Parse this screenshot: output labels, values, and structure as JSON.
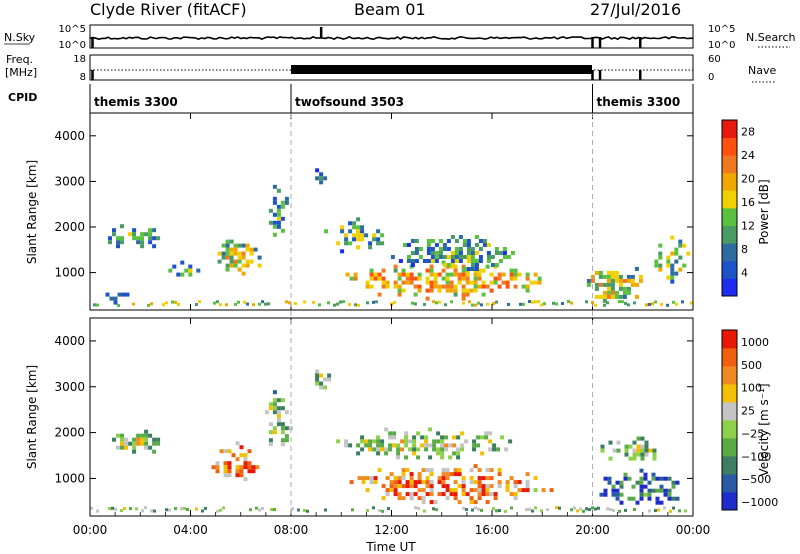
{
  "header": {
    "station": "Clyde River (fitACF)",
    "beam": "Beam 01",
    "date": "27/Jul/2016"
  },
  "panels": {
    "noise": {
      "left_label": "N.Sky",
      "left_ticks": [
        "10^5",
        "10^0"
      ],
      "right_label": "N.Search",
      "right_ticks": [
        "10^5",
        "10^0"
      ]
    },
    "freq": {
      "left_label_1": "Freq.",
      "left_label_2": "[MHz]",
      "left_ticks": [
        "18",
        "8"
      ],
      "right_label": "Nave",
      "right_ticks": [
        "60",
        "0"
      ]
    },
    "cpid": {
      "label": "CPID",
      "segments": [
        {
          "name": "themis 3300",
          "start_hour": 0,
          "end_hour": 8
        },
        {
          "name": "twofsound 3503",
          "start_hour": 8,
          "end_hour": 20
        },
        {
          "name": "themis 3300",
          "start_hour": 20,
          "end_hour": 24
        }
      ]
    }
  },
  "colors": {
    "power": [
      "#1f2cf0",
      "#1e52c8",
      "#2e6ba0",
      "#4a9a64",
      "#59c040",
      "#f0d000",
      "#f0a800",
      "#f07820",
      "#ff5010",
      "#e81a10"
    ],
    "velocity": [
      "#1e2ccc",
      "#2a5aa6",
      "#3d7e62",
      "#5aaa48",
      "#8fd04a",
      "#c4c4c4",
      "#f2c000",
      "#f08a20",
      "#f06010",
      "#e81808"
    ]
  },
  "chart_data": [
    {
      "type": "heatmap",
      "title": "",
      "quantity": "Power",
      "xlabel": "",
      "ylabel": "Slant Range [km]",
      "xlim": [
        0,
        24
      ],
      "ylim": [
        180,
        4500
      ],
      "yticks": [
        1000,
        2000,
        3000,
        4000
      ],
      "colorbar": {
        "label": "Power [dB]",
        "ticks": [
          "4",
          "8",
          "12",
          "16",
          "20",
          "24",
          "28"
        ],
        "range": [
          0,
          30
        ]
      },
      "regions": [
        {
          "t0": 0.4,
          "t1": 3.0,
          "r0": 1500,
          "r1": 2150,
          "level": 0.35
        },
        {
          "t0": 2.8,
          "t1": 4.4,
          "r0": 900,
          "r1": 1350,
          "level": 0.4
        },
        {
          "t0": 4.6,
          "t1": 7.0,
          "r0": 850,
          "r1": 1900,
          "level": 0.55
        },
        {
          "t0": 6.8,
          "t1": 8.0,
          "r0": 1550,
          "r1": 3100,
          "level": 0.35
        },
        {
          "t0": 8.8,
          "t1": 9.6,
          "r0": 2900,
          "r1": 3550,
          "level": 0.3
        },
        {
          "t0": 8.9,
          "t1": 19.4,
          "r0": 380,
          "r1": 1350,
          "level": 0.68
        },
        {
          "t0": 9.0,
          "t1": 12.0,
          "r0": 1400,
          "r1": 2300,
          "level": 0.42
        },
        {
          "t0": 11.5,
          "t1": 17.5,
          "r0": 1000,
          "r1": 2000,
          "level": 0.35
        },
        {
          "t0": 19.3,
          "t1": 22.4,
          "r0": 250,
          "r1": 1300,
          "level": 0.55
        },
        {
          "t0": 22.3,
          "t1": 24.0,
          "r0": 700,
          "r1": 1900,
          "level": 0.5
        },
        {
          "t0": 0.3,
          "t1": 1.8,
          "r0": 350,
          "r1": 650,
          "level": 0.3
        }
      ]
    },
    {
      "type": "heatmap",
      "title": "",
      "quantity": "Velocity",
      "xlabel": "Time UT",
      "ylabel": "Slant Range [km]",
      "xlim": [
        0,
        24
      ],
      "ylim": [
        180,
        4500
      ],
      "yticks": [
        1000,
        2000,
        3000,
        4000
      ],
      "xticks": [
        "00:00",
        "04:00",
        "08:00",
        "12:00",
        "16:00",
        "20:00",
        "00:00"
      ],
      "colorbar": {
        "label": "Velocity [m s⁻¹]",
        "ticks": [
          "1000",
          "500",
          "100",
          "25",
          "−25",
          "−100",
          "−500",
          "−1000"
        ],
        "range": [
          -1000,
          1000
        ]
      },
      "regions": [
        {
          "t0": 0.4,
          "t1": 3.2,
          "r0": 1500,
          "r1": 2150,
          "level": 0.5
        },
        {
          "t0": 4.2,
          "t1": 7.2,
          "r0": 900,
          "r1": 1900,
          "level": 0.82
        },
        {
          "t0": 6.8,
          "t1": 8.0,
          "r0": 1550,
          "r1": 3100,
          "level": 0.48
        },
        {
          "t0": 8.8,
          "t1": 9.6,
          "r0": 2900,
          "r1": 3550,
          "level": 0.5
        },
        {
          "t0": 8.9,
          "t1": 19.4,
          "r0": 380,
          "r1": 1400,
          "level": 0.8
        },
        {
          "t0": 9.0,
          "t1": 17.5,
          "r0": 1400,
          "r1": 2200,
          "level": 0.52
        },
        {
          "t0": 19.8,
          "t1": 24.0,
          "r0": 350,
          "r1": 1300,
          "level": 0.22
        },
        {
          "t0": 20.0,
          "t1": 23.0,
          "r0": 1300,
          "r1": 2000,
          "level": 0.5
        }
      ]
    }
  ]
}
